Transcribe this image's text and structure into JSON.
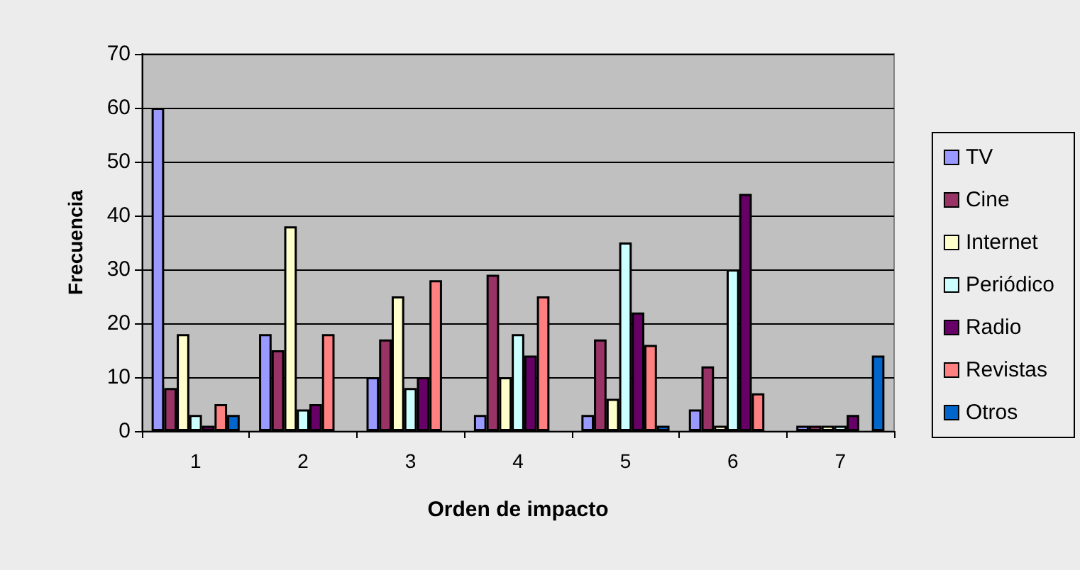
{
  "chart_data": {
    "type": "bar",
    "xlabel": "Orden de impacto",
    "ylabel": "Frecuencia",
    "categories": [
      "1",
      "2",
      "3",
      "4",
      "5",
      "6",
      "7"
    ],
    "series": [
      {
        "name": "TV",
        "color": "#9999ff",
        "values": [
          60,
          18,
          10,
          3,
          3,
          4,
          1
        ]
      },
      {
        "name": "Cine",
        "color": "#993366",
        "values": [
          8,
          15,
          17,
          29,
          17,
          12,
          1
        ]
      },
      {
        "name": "Internet",
        "color": "#ffffcc",
        "values": [
          18,
          38,
          25,
          10,
          6,
          1,
          1
        ]
      },
      {
        "name": "Periódico",
        "color": "#ccffff",
        "values": [
          3,
          4,
          8,
          18,
          35,
          30,
          1
        ]
      },
      {
        "name": "Radio",
        "color": "#660066",
        "values": [
          1,
          5,
          10,
          14,
          22,
          44,
          3
        ]
      },
      {
        "name": "Revistas",
        "color": "#ff8080",
        "values": [
          5,
          18,
          28,
          25,
          16,
          7,
          null
        ]
      },
      {
        "name": "Otros",
        "color": "#0066cc",
        "values": [
          3,
          null,
          null,
          null,
          1,
          null,
          14
        ]
      }
    ],
    "ylim": [
      0,
      70
    ],
    "yticks": [
      0,
      10,
      20,
      30,
      40,
      50,
      60,
      70
    ],
    "grid": "y",
    "legend": "right"
  }
}
